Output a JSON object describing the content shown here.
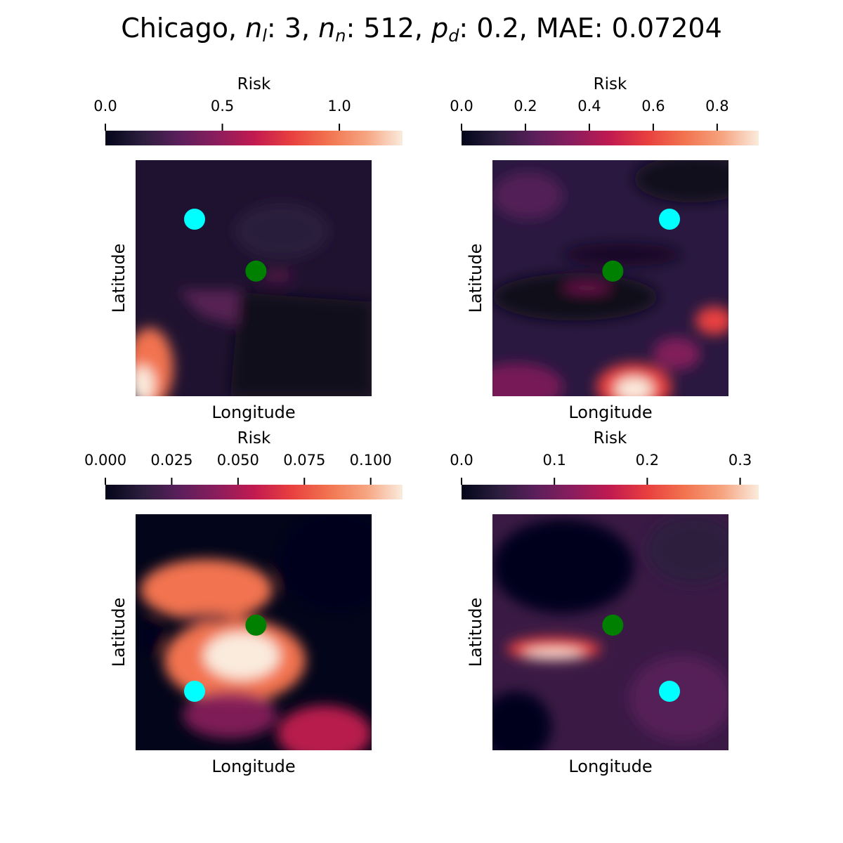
{
  "title": {
    "city": "Chicago",
    "n_l_label": "n",
    "n_l_sub": "l",
    "n_l_value": "3",
    "n_n_label": "n",
    "n_n_sub": "n",
    "n_n_value": "512",
    "p_d_label": "p",
    "p_d_sub": "d",
    "p_d_value": "0.2",
    "mae_label": "MAE",
    "mae_value": "0.07204"
  },
  "colors": {
    "colormap": [
      "#03051a",
      "#2c1e3e",
      "#5c1f5c",
      "#8b1d5d",
      "#c11a50",
      "#e83f3f",
      "#f2734f",
      "#f6a37f",
      "#faebdd"
    ],
    "marker_cyan": "#00ffff",
    "marker_green": "#008000"
  },
  "chart_data": [
    {
      "type": "heatmap",
      "colorbar_label": "Risk",
      "xlabel": "Longitude",
      "ylabel": "Latitude",
      "vmin": 0,
      "vmax": 1.27,
      "ticks": [
        0.0,
        0.5,
        1.0
      ],
      "tick_labels": [
        "0.0",
        "0.5",
        "1.0"
      ],
      "markers": [
        {
          "color": "cyan",
          "x": 0.25,
          "y": 0.75
        },
        {
          "color": "green",
          "x": 0.51,
          "y": 0.53
        }
      ]
    },
    {
      "type": "heatmap",
      "colorbar_label": "Risk",
      "xlabel": "Longitude",
      "ylabel": "Latitude",
      "vmin": 0,
      "vmax": 0.93,
      "ticks": [
        0.0,
        0.2,
        0.4,
        0.6,
        0.8
      ],
      "tick_labels": [
        "0.0",
        "0.2",
        "0.4",
        "0.6",
        "0.8"
      ],
      "markers": [
        {
          "color": "cyan",
          "x": 0.75,
          "y": 0.75
        },
        {
          "color": "green",
          "x": 0.51,
          "y": 0.53
        }
      ]
    },
    {
      "type": "heatmap",
      "colorbar_label": "Risk",
      "xlabel": "Longitude",
      "ylabel": "Latitude",
      "vmin": 0,
      "vmax": 0.112,
      "ticks": [
        0.0,
        0.025,
        0.05,
        0.075,
        0.1
      ],
      "tick_labels": [
        "0.000",
        "0.025",
        "0.050",
        "0.075",
        "0.100"
      ],
      "markers": [
        {
          "color": "cyan",
          "x": 0.25,
          "y": 0.25
        },
        {
          "color": "green",
          "x": 0.51,
          "y": 0.53
        }
      ]
    },
    {
      "type": "heatmap",
      "colorbar_label": "Risk",
      "xlabel": "Longitude",
      "ylabel": "Latitude",
      "vmin": 0,
      "vmax": 0.32,
      "ticks": [
        0.0,
        0.1,
        0.2,
        0.3
      ],
      "tick_labels": [
        "0.0",
        "0.1",
        "0.2",
        "0.3"
      ],
      "markers": [
        {
          "color": "cyan",
          "x": 0.75,
          "y": 0.25
        },
        {
          "color": "green",
          "x": 0.51,
          "y": 0.53
        }
      ]
    }
  ]
}
